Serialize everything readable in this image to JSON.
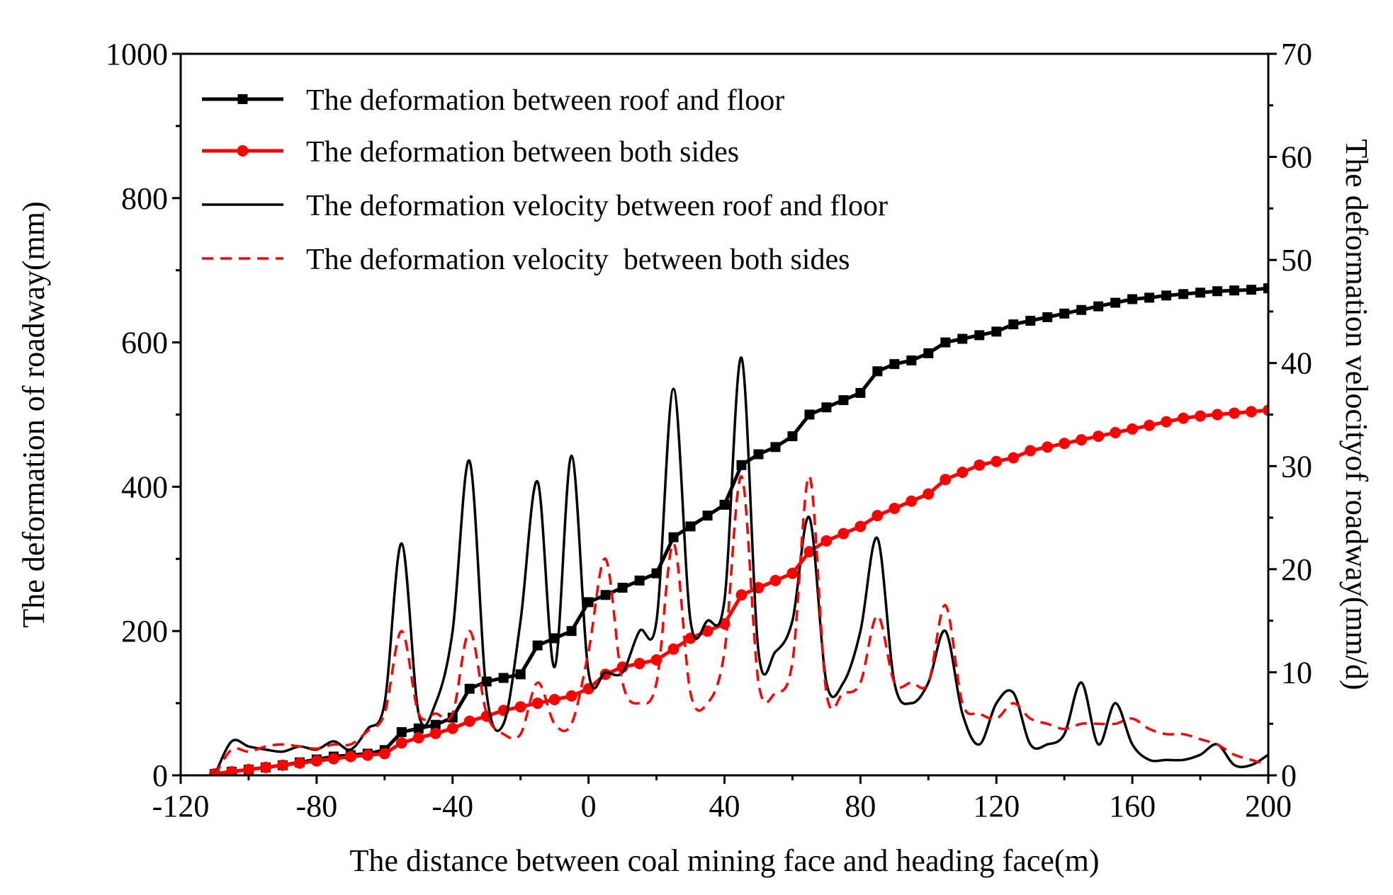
{
  "chart_data": {
    "type": "line",
    "title": "",
    "xlabel": "The distance between coal mining face and heading face(m)",
    "ylabel": "The deformation of roadway(mm)",
    "y2label": "The deformation velocityof roadway(mm/d)",
    "xlim": [
      -120,
      200
    ],
    "ylim": [
      0,
      1000
    ],
    "y2lim": [
      0,
      70
    ],
    "xticks": [
      "-120",
      "-80",
      "-40",
      "0",
      "40",
      "80",
      "120",
      "160",
      "200"
    ],
    "yticks": [
      "0",
      "200",
      "400",
      "600",
      "800",
      "1000"
    ],
    "y2ticks": [
      "0",
      "10",
      "20",
      "30",
      "40",
      "50",
      "60",
      "70"
    ],
    "grid": false,
    "legend_position": "top-left",
    "series": [
      {
        "name": "The deformation between roof and floor",
        "axis": "left",
        "color": "#000000",
        "style": "solid-square-markers",
        "x": [
          -110,
          -105,
          -100,
          -95,
          -90,
          -85,
          -80,
          -75,
          -70,
          -65,
          -60,
          -55,
          -50,
          -45,
          -40,
          -35,
          -30,
          -25,
          -20,
          -15,
          -10,
          -5,
          0,
          5,
          10,
          15,
          20,
          25,
          30,
          35,
          40,
          45,
          50,
          55,
          60,
          65,
          70,
          75,
          80,
          85,
          90,
          95,
          100,
          105,
          110,
          115,
          120,
          125,
          130,
          135,
          140,
          145,
          150,
          155,
          160,
          165,
          170,
          175,
          180,
          185,
          190,
          195,
          200
        ],
        "values": [
          2,
          5,
          8,
          11,
          14,
          18,
          22,
          26,
          28,
          30,
          35,
          60,
          65,
          70,
          80,
          120,
          130,
          135,
          140,
          180,
          190,
          200,
          240,
          250,
          260,
          270,
          280,
          330,
          345,
          360,
          375,
          430,
          445,
          455,
          470,
          500,
          510,
          520,
          530,
          560,
          570,
          575,
          585,
          600,
          605,
          610,
          615,
          625,
          630,
          635,
          640,
          645,
          650,
          655,
          660,
          662,
          665,
          667,
          669,
          671,
          672,
          673,
          675
        ]
      },
      {
        "name": "The deformation between both sides",
        "axis": "left",
        "color": "#ff0000",
        "style": "solid-circle-markers",
        "x": [
          -110,
          -105,
          -100,
          -95,
          -90,
          -85,
          -80,
          -75,
          -70,
          -65,
          -60,
          -55,
          -50,
          -45,
          -40,
          -35,
          -30,
          -25,
          -20,
          -15,
          -10,
          -5,
          0,
          5,
          10,
          15,
          20,
          25,
          30,
          35,
          40,
          45,
          50,
          55,
          60,
          65,
          70,
          75,
          80,
          85,
          90,
          95,
          100,
          105,
          110,
          115,
          120,
          125,
          130,
          135,
          140,
          145,
          150,
          155,
          160,
          165,
          170,
          175,
          180,
          185,
          190,
          195,
          200
        ],
        "values": [
          2,
          5,
          8,
          11,
          14,
          17,
          20,
          23,
          26,
          28,
          30,
          45,
          52,
          58,
          65,
          75,
          82,
          90,
          95,
          100,
          105,
          110,
          120,
          140,
          150,
          155,
          160,
          175,
          190,
          200,
          210,
          250,
          260,
          270,
          280,
          310,
          325,
          335,
          345,
          360,
          370,
          380,
          390,
          410,
          420,
          430,
          435,
          440,
          450,
          455,
          460,
          465,
          470,
          475,
          480,
          485,
          490,
          495,
          498,
          500,
          502,
          504,
          506
        ]
      },
      {
        "name": "The deformation velocity between roof and floor",
        "axis": "right",
        "color": "#000000",
        "style": "solid",
        "x": [
          -110,
          -105,
          -100,
          -95,
          -90,
          -85,
          -80,
          -75,
          -70,
          -65,
          -60,
          -55,
          -50,
          -45,
          -40,
          -35,
          -30,
          -25,
          -20,
          -15,
          -10,
          -5,
          0,
          5,
          10,
          15,
          20,
          25,
          30,
          35,
          40,
          45,
          50,
          55,
          60,
          65,
          70,
          75,
          80,
          85,
          90,
          95,
          100,
          105,
          110,
          115,
          120,
          125,
          130,
          135,
          140,
          145,
          150,
          155,
          160,
          165,
          170,
          175,
          180,
          185,
          190,
          195,
          200
        ],
        "values": [
          0,
          3.3,
          2.8,
          2.5,
          2.3,
          2.8,
          2.5,
          3.3,
          2.5,
          4.5,
          7,
          22.5,
          6,
          7,
          14,
          30.5,
          8,
          5,
          15,
          28.5,
          10.5,
          31,
          10,
          10,
          10,
          14,
          15,
          37.5,
          15,
          15,
          17,
          40.5,
          12,
          12,
          15,
          25,
          9,
          9,
          14,
          23,
          9,
          7,
          9,
          14,
          6,
          3,
          7,
          8,
          3,
          3,
          4,
          9,
          3,
          7,
          3,
          1.5,
          1.5,
          1.5,
          2,
          3,
          1,
          1,
          2
        ]
      },
      {
        "name": "The deformation velocity  between both sides",
        "axis": "right",
        "color": "#ff0000",
        "style": "dashed",
        "x": [
          -110,
          -105,
          -100,
          -95,
          -90,
          -85,
          -80,
          -75,
          -70,
          -65,
          -60,
          -55,
          -50,
          -45,
          -40,
          -35,
          -30,
          -25,
          -20,
          -15,
          -10,
          -5,
          0,
          5,
          10,
          15,
          20,
          25,
          30,
          35,
          40,
          45,
          50,
          55,
          60,
          65,
          70,
          75,
          80,
          85,
          90,
          95,
          100,
          105,
          110,
          115,
          120,
          125,
          130,
          135,
          140,
          145,
          150,
          155,
          160,
          165,
          170,
          175,
          180,
          185,
          190,
          195,
          200
        ],
        "values": [
          0,
          2.5,
          2.3,
          2.8,
          3,
          2.8,
          2.6,
          3,
          3,
          4.3,
          6,
          14,
          6,
          6,
          6,
          14,
          6,
          4,
          4,
          9,
          5,
          5,
          12,
          21,
          9,
          7,
          9,
          22.5,
          8,
          7,
          12,
          29,
          9,
          8,
          11,
          29,
          8,
          8,
          9,
          15.5,
          9,
          9,
          9,
          16.5,
          7,
          6,
          5.5,
          7,
          5.5,
          5,
          4.5,
          5,
          5,
          5,
          5.5,
          4.5,
          4,
          4,
          3.5,
          3,
          2,
          1.5,
          1
        ]
      }
    ]
  }
}
